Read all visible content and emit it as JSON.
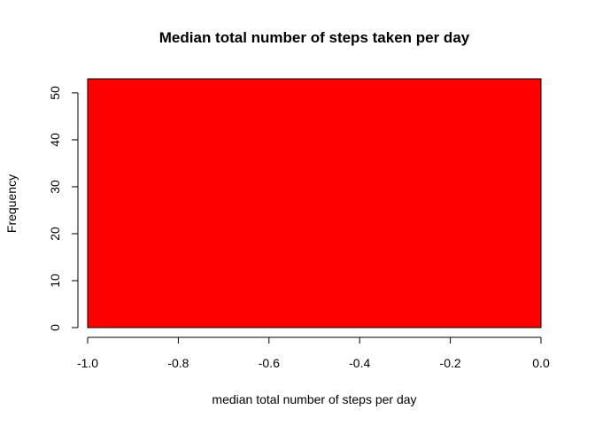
{
  "chart_data": {
    "type": "bar",
    "title": "Median total number of steps taken per day",
    "xlabel": "median total number of steps per day",
    "ylabel": "Frequency",
    "bins": [
      {
        "x0": -1.0,
        "x1": 0.0,
        "value": 53
      }
    ],
    "xlim": [
      -1.0,
      0.0
    ],
    "ylim": [
      0,
      53
    ],
    "xticks": [
      -1.0,
      -0.8,
      -0.6,
      -0.4,
      -0.2,
      0.0
    ],
    "xtick_labels": [
      "-1.0",
      "-0.8",
      "-0.6",
      "-0.4",
      "-0.2",
      "0.0"
    ],
    "yticks": [
      0,
      10,
      20,
      30,
      40,
      50
    ],
    "ytick_labels": [
      "0",
      "10",
      "20",
      "30",
      "40",
      "50"
    ],
    "bar_color": "#ff0000",
    "grid": false,
    "legend": "none"
  }
}
